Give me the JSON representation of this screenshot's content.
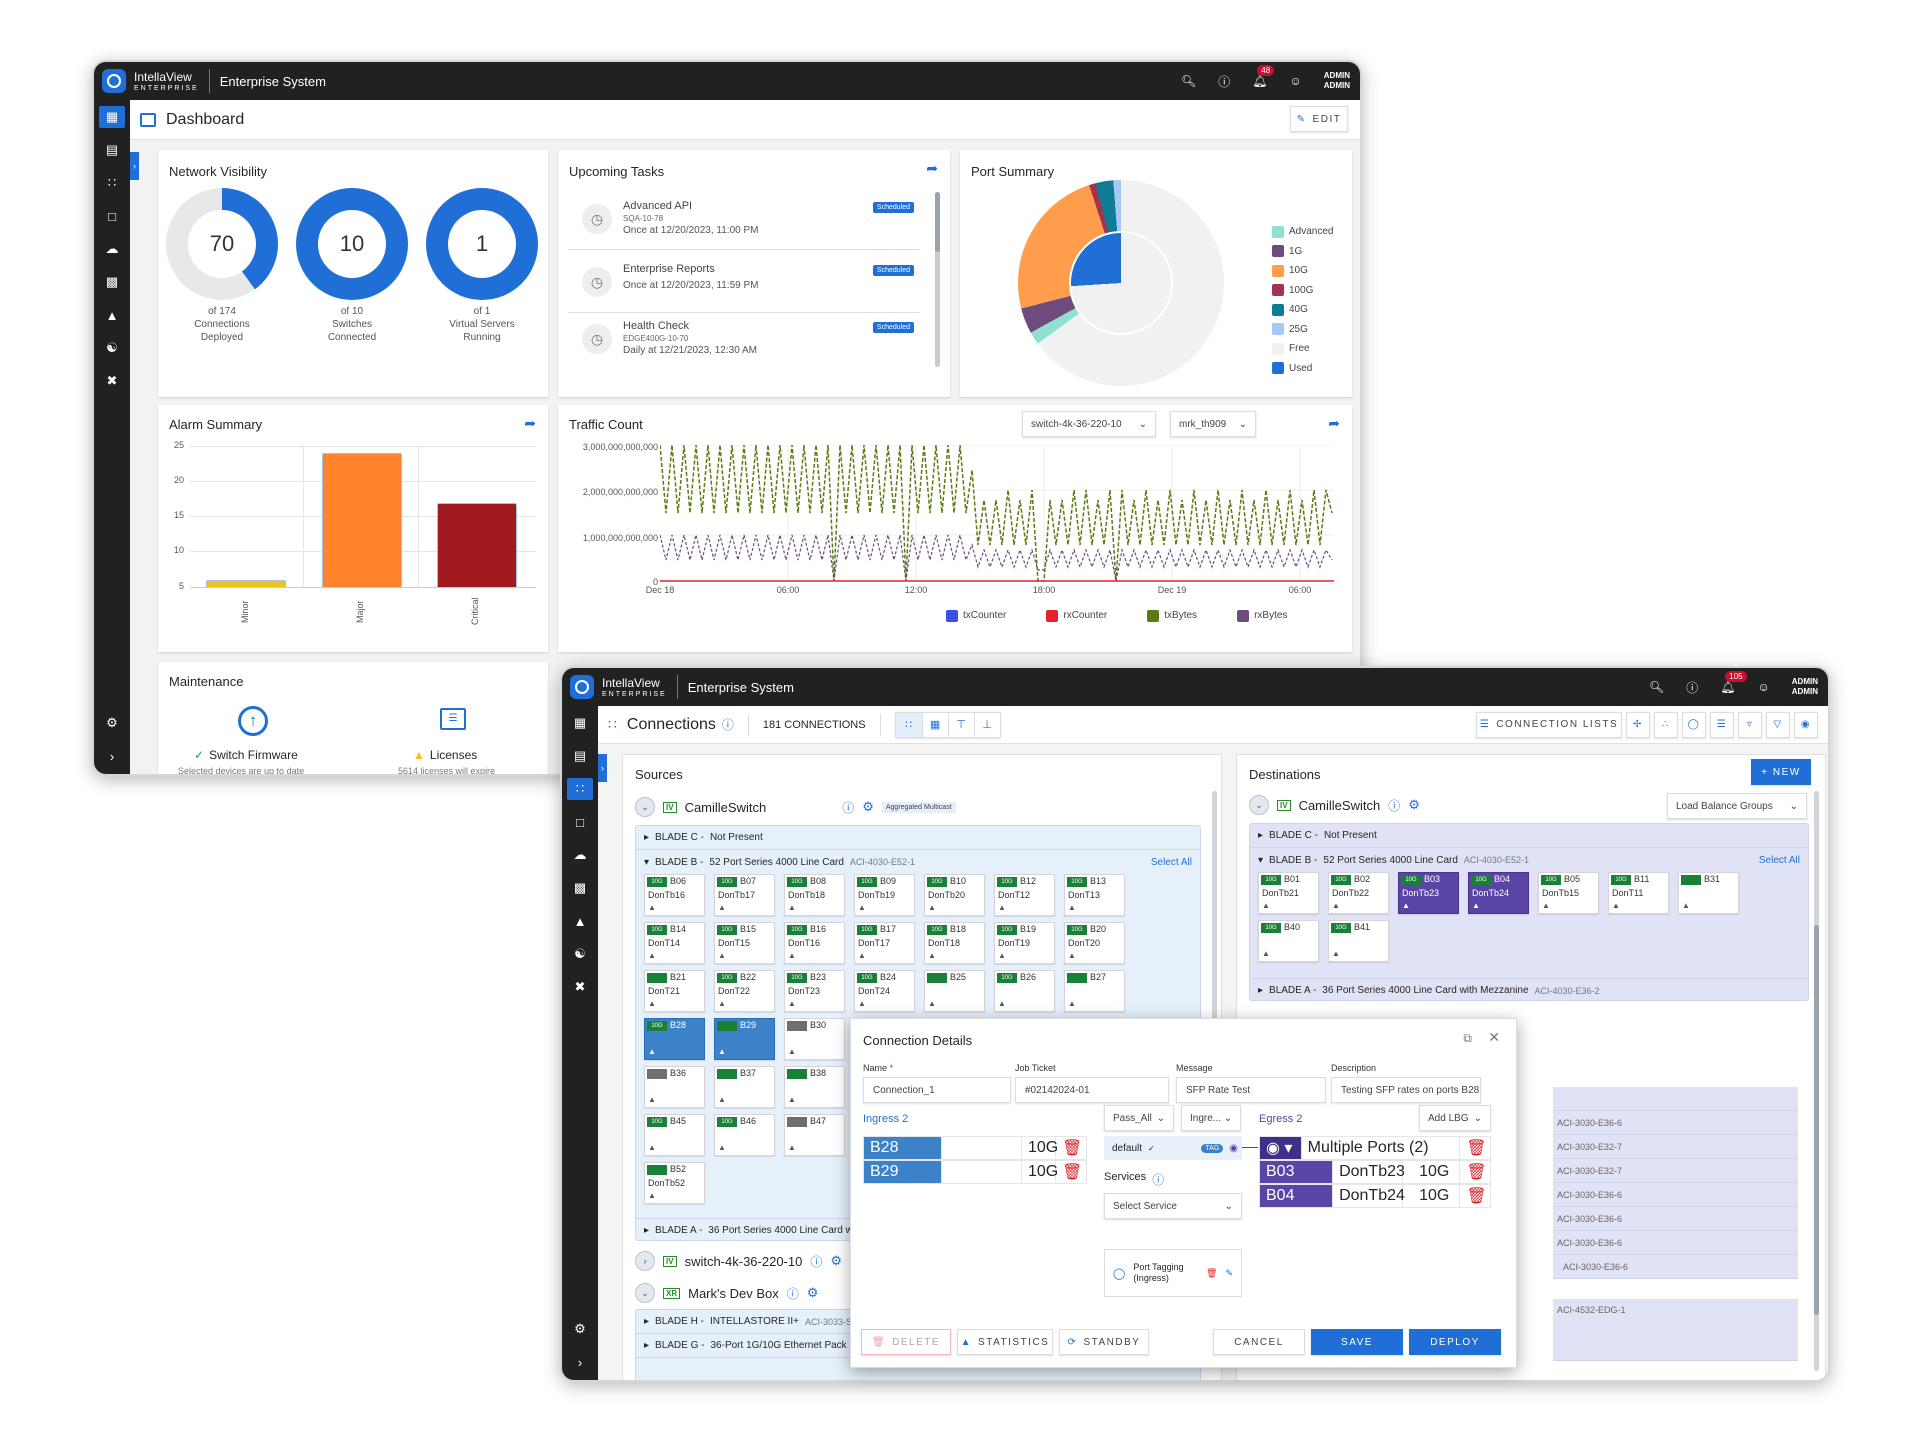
{
  "window1": {
    "brand": {
      "name": "IntellaView",
      "sub": "ENTERPRISE"
    },
    "app_title": "Enterprise System",
    "notifications_count": "48",
    "user": {
      "line1": "ADMIN",
      "line2": "ADMIN"
    },
    "page_title": "Dashboard",
    "edit_label": "EDIT",
    "sidebar_icons": [
      "dashboard-icon",
      "list-icon",
      "connections-icon",
      "calendar-icon",
      "cloud-icon",
      "device-settings-icon",
      "statistics-icon",
      "users-icon",
      "tools-icon"
    ],
    "network_visibility": {
      "title": "Network Visibility",
      "gauges": [
        {
          "value": "70",
          "line1": "of 174",
          "line2": "Connections",
          "line3": "Deployed"
        },
        {
          "value": "10",
          "line1": "of 10",
          "line2": "Switches",
          "line3": "Connected"
        },
        {
          "value": "1",
          "line1": "of 1",
          "line2": "Virtual Servers",
          "line3": "Running"
        }
      ]
    },
    "upcoming_tasks": {
      "title": "Upcoming Tasks",
      "items": [
        {
          "name": "Advanced API",
          "code": "SQA-10-78",
          "when": "Once at 12/20/2023, 11:00 PM",
          "status": "Scheduled"
        },
        {
          "name": "Enterprise Reports",
          "code": "",
          "when": "Once at 12/20/2023, 11:59 PM",
          "status": "Scheduled"
        },
        {
          "name": "Health Check",
          "code": "EDGE400G-10-70",
          "when": "Daily at 12/21/2023, 12:30 AM",
          "status": "Scheduled"
        }
      ]
    },
    "port_summary": {
      "title": "Port Summary",
      "legend": [
        {
          "label": "Advanced",
          "color": "#8ee0d1"
        },
        {
          "label": "1G",
          "color": "#6e4b7e"
        },
        {
          "label": "10G",
          "color": "#ff9d4d"
        },
        {
          "label": "100G",
          "color": "#a3324f"
        },
        {
          "label": "40G",
          "color": "#0f7c96"
        },
        {
          "label": "25G",
          "color": "#a6c8f5"
        },
        {
          "label": "Free",
          "color": "#f1f1f1"
        },
        {
          "label": "Used",
          "color": "#1f6fd6"
        }
      ]
    },
    "alarm_summary": {
      "title": "Alarm Summary"
    },
    "traffic_count": {
      "title": "Traffic Count",
      "switch_select": "switch-4k-36-220-10",
      "port_select": "mrk_th909"
    },
    "maintenance": {
      "title": "Maintenance",
      "items": [
        {
          "label": "Switch Firmware",
          "desc": "Selected devices are up to date",
          "status": "ok"
        },
        {
          "label": "Licenses",
          "desc": "5614 licenses will expire",
          "status": "warning"
        }
      ]
    }
  },
  "window2": {
    "brand": {
      "name": "IntellaView",
      "sub": "ENTERPRISE"
    },
    "app_title": "Enterprise System",
    "notifications_count": "105",
    "user": {
      "line1": "ADMIN",
      "line2": "ADMIN"
    },
    "page_title": "Connections",
    "connections_count": "181 CONNECTIONS",
    "connection_lists_label": "CONNECTION LISTS",
    "new_label": "+ NEW",
    "sources": {
      "title": "Sources",
      "switch_name": "CamilleSwitch",
      "multicast_tag": "Aggregated Multicast",
      "blade_c": {
        "label": "BLADE C -",
        "desc": "Not Present"
      },
      "blade_b": {
        "label": "BLADE B -",
        "desc": "52 Port Series 4000 Line Card",
        "model": "ACI-4030-E52-1",
        "select_all": "Select All"
      },
      "ports": [
        {
          "speed": "10G",
          "id": "B06",
          "name": "DonTb16"
        },
        {
          "speed": "10G",
          "id": "B07",
          "name": "DonTb17"
        },
        {
          "speed": "10G",
          "id": "B08",
          "name": "DonTb18"
        },
        {
          "speed": "10G",
          "id": "B09",
          "name": "DonTb19"
        },
        {
          "speed": "10G",
          "id": "B10",
          "name": "DonTb20"
        },
        {
          "speed": "10G",
          "id": "B12",
          "name": "DonT12"
        },
        {
          "speed": "10G",
          "id": "B13",
          "name": "DonT13"
        },
        {
          "speed": "10G",
          "id": "B14",
          "name": "DonT14"
        },
        {
          "speed": "10G",
          "id": "B15",
          "name": "DonT15"
        },
        {
          "speed": "10G",
          "id": "B16",
          "name": "DonT16"
        },
        {
          "speed": "10G",
          "id": "B17",
          "name": "DonT17"
        },
        {
          "speed": "10G",
          "id": "B18",
          "name": "DonT18"
        },
        {
          "speed": "10G",
          "id": "B19",
          "name": "DonT19"
        },
        {
          "speed": "10G",
          "id": "B20",
          "name": "DonT20"
        },
        {
          "speed": "",
          "id": "B21",
          "name": "DonT21"
        },
        {
          "speed": "10G",
          "id": "B22",
          "name": "DonT22"
        },
        {
          "speed": "10G",
          "id": "B23",
          "name": "DonT23"
        },
        {
          "speed": "10G",
          "id": "B24",
          "name": "DonT24"
        },
        {
          "speed": "",
          "id": "B25",
          "name": ""
        },
        {
          "speed": "10G",
          "id": "B26",
          "name": ""
        },
        {
          "speed": "",
          "id": "B27",
          "name": ""
        },
        {
          "speed": "10G",
          "id": "B28",
          "name": "",
          "selected": true
        },
        {
          "speed": "",
          "id": "B29",
          "name": "",
          "selected": true
        },
        {
          "speed": "",
          "id": "B30",
          "name": "",
          "gray": true
        },
        {
          "speed": "",
          "id": "B36",
          "name": "",
          "gray": true
        },
        {
          "speed": "",
          "id": "B37",
          "name": ""
        },
        {
          "speed": "",
          "id": "B38",
          "name": ""
        },
        {
          "speed": "10G",
          "id": "B45",
          "name": ""
        },
        {
          "speed": "10G",
          "id": "B46",
          "name": ""
        },
        {
          "speed": "",
          "id": "B47",
          "name": "",
          "gray": true
        },
        {
          "speed": "",
          "id": "B52",
          "name": "DonTb52"
        }
      ],
      "blade_a": {
        "label": "BLADE A -",
        "desc": "36 Port Series 4000 Line Card w"
      },
      "switch2": "switch-4k-36-220-10",
      "switch3": "Mark's Dev Box",
      "blade_h": {
        "label": "BLADE H -",
        "desc": "INTELLASTORE II+",
        "model": "ACI-3033-S"
      },
      "blade_g": {
        "label": "BLADE G -",
        "desc": "36-Port 1G/10G Ethernet Pack"
      }
    },
    "destinations": {
      "title": "Destinations",
      "switch_name": "CamilleSwitch",
      "lbg_select": "Load Balance Groups",
      "blade_c": {
        "label": "BLADE C -",
        "desc": "Not Present"
      },
      "blade_b": {
        "label": "BLADE B -",
        "desc": "52 Port Series 4000 Line Card",
        "model": "ACI-4030-E52-1",
        "select_all": "Select All"
      },
      "ports": [
        {
          "speed": "10G",
          "id": "B01",
          "name": "DonTb21"
        },
        {
          "speed": "10G",
          "id": "B02",
          "name": "DonTb22"
        },
        {
          "speed": "10G",
          "id": "B03",
          "name": "DonTb23",
          "selected": true
        },
        {
          "speed": "10G",
          "id": "B04",
          "name": "DonTb24",
          "selected": true
        },
        {
          "speed": "10G",
          "id": "B05",
          "name": "DonTb15"
        },
        {
          "speed": "10G",
          "id": "B11",
          "name": "DonT11"
        },
        {
          "speed": "",
          "id": "B31",
          "name": ""
        },
        {
          "speed": "10G",
          "id": "B40",
          "name": ""
        },
        {
          "speed": "10G",
          "id": "B41",
          "name": ""
        }
      ],
      "blade_a": {
        "label": "BLADE A -",
        "desc": "36 Port Series 4000 Line Card with Mezzanine",
        "model": "ACI-4030-E36-2"
      },
      "models": [
        "ACI-3030-E36-6",
        "ACI-3030-E32-7",
        "ACI-3030-E32-7",
        "ACI-3030-E36-6",
        "ACI-3030-E36-6",
        "ACI-3030-E36-6",
        "ACI-3030-E36-6"
      ],
      "edge_model": "ACI-4532-EDG-1"
    },
    "modal": {
      "title": "Connection Details",
      "name_label": "Name",
      "name_value": "Connection_1",
      "job_label": "Job Ticket",
      "job_value": "#02142024-01",
      "message_label": "Message",
      "message_value": "SFP Rate Test",
      "desc_label": "Description",
      "desc_value": "Testing SFP rates on ports B28",
      "ingress_label": "Ingress 2",
      "ingress_rows": [
        {
          "port": "B28",
          "speed": "10G"
        },
        {
          "port": "B29",
          "speed": "10G"
        }
      ],
      "filter_select": "Pass_All",
      "ingress_select": "Ingre...",
      "default_label": "default",
      "tag_label": "TAG",
      "services_label": "Services",
      "service_select": "Select Service",
      "port_tagging": {
        "line1": "Port Tagging",
        "line2": "(Ingress)"
      },
      "egress_label": "Egress 2",
      "add_lbg": "Add LBG",
      "multiple_ports": "Multiple Ports (2)",
      "egress_rows": [
        {
          "port": "B03",
          "name": "DonTb23",
          "speed": "10G"
        },
        {
          "port": "B04",
          "name": "DonTb24",
          "speed": "10G"
        }
      ],
      "buttons": {
        "delete": "DELETE",
        "statistics": "STATISTICS",
        "standby": "STANDBY",
        "cancel": "CANCEL",
        "save": "SAVE",
        "deploy": "DEPLOY"
      }
    }
  },
  "chart_data": [
    {
      "type": "pie",
      "title": "Port Summary",
      "inner_ring": {
        "labels": [
          "Used",
          "Free"
        ],
        "values": [
          26,
          74
        ]
      },
      "outer_ring": {
        "labels": [
          "10G",
          "100G",
          "40G",
          "25G",
          "Free",
          "1G",
          "Advanced"
        ],
        "values": [
          24,
          1,
          3,
          1,
          65,
          4,
          2
        ]
      },
      "legend": [
        "Advanced",
        "1G",
        "10G",
        "100G",
        "40G",
        "25G",
        "Free",
        "Used"
      ],
      "legend_position": "right"
    },
    {
      "type": "bar",
      "title": "Alarm Summary",
      "categories": [
        "Minor",
        "Major",
        "Critical"
      ],
      "values": [
        6,
        24,
        17
      ],
      "colors": [
        "#f1c21b",
        "#ff832b",
        "#a2191f"
      ],
      "ylim": [
        5,
        25
      ],
      "yticks": [
        5,
        10,
        15,
        20,
        25
      ],
      "grid": true
    },
    {
      "type": "line",
      "title": "Traffic Count",
      "x_ticks": [
        "Dec 18",
        "06:00",
        "12:00",
        "18:00",
        "Dec 19",
        "06:00"
      ],
      "y_ticks": [
        "0",
        "1,000,000,000,000",
        "2,000,000,000,000",
        "3,000,000,000,000"
      ],
      "ylim": [
        0,
        3000000000000
      ],
      "series": [
        {
          "name": "txCounter",
          "color": "#3d4ee6",
          "approx_range": [
            0,
            0
          ]
        },
        {
          "name": "rxCounter",
          "color": "#e8212e",
          "approx_range": [
            0,
            0
          ]
        },
        {
          "name": "txBytes",
          "color": "#5a7a12",
          "approx_range_before_15h": [
            1500000000000,
            3000000000000
          ],
          "approx_range_after_15h": [
            1000000000000,
            2200000000000
          ]
        },
        {
          "name": "rxBytes",
          "color": "#6e4b7e",
          "approx_range_before_15h": [
            500000000000,
            1000000000000
          ],
          "approx_range_after_15h": [
            300000000000,
            700000000000
          ]
        }
      ],
      "legend_position": "bottom"
    }
  ]
}
